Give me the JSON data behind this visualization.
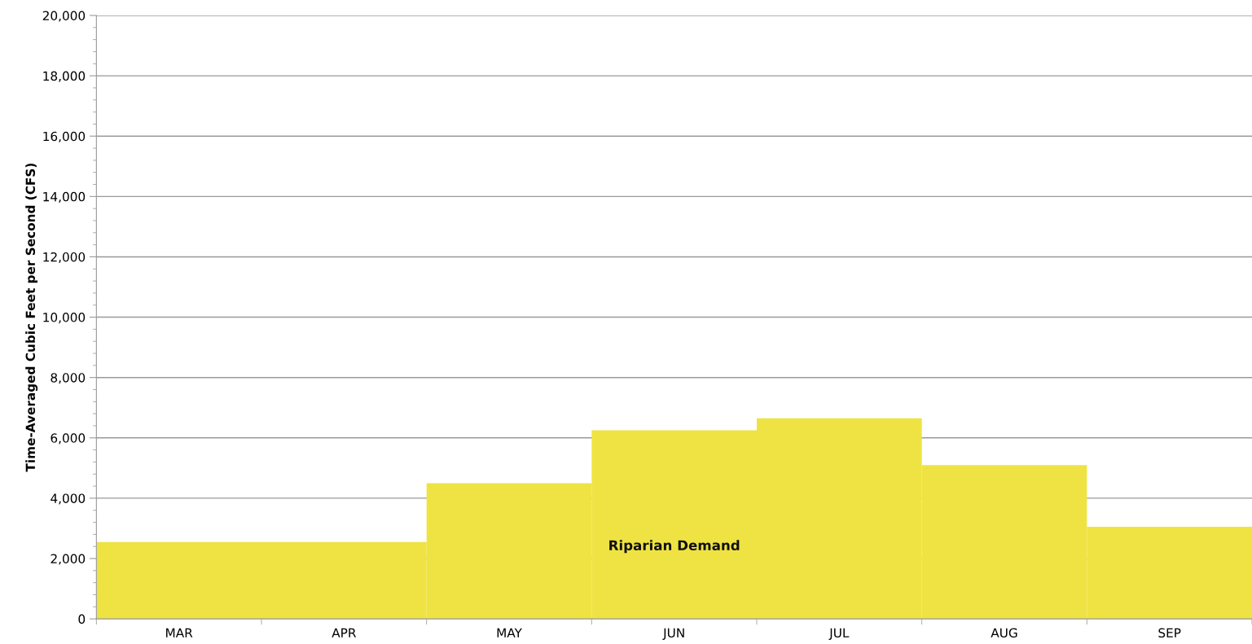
{
  "chart_data": {
    "type": "bar",
    "ylabel": "Time-Averaged Cubic Feet per Second (CFS)",
    "categories": [
      "MAR",
      "APR",
      "MAY",
      "JUN",
      "JUL",
      "AUG",
      "SEP"
    ],
    "series": [
      {
        "name": "Riparian Demand",
        "color": "#efe343",
        "values": [
          2550,
          2550,
          4500,
          6250,
          6650,
          5100,
          3050
        ]
      }
    ],
    "ylim": [
      0,
      20000
    ],
    "yticks": [
      {
        "value": 0,
        "label": "0"
      },
      {
        "value": 2000,
        "label": "2,000"
      },
      {
        "value": 4000,
        "label": "4,000"
      },
      {
        "value": 6000,
        "label": "6,000"
      },
      {
        "value": 8000,
        "label": "8,000"
      },
      {
        "value": 10000,
        "label": "10,000"
      },
      {
        "value": 12000,
        "label": "12,000"
      },
      {
        "value": 14000,
        "label": "14,000"
      },
      {
        "value": 16000,
        "label": "16,000"
      },
      {
        "value": 18000,
        "label": "18,000"
      },
      {
        "value": 20000,
        "label": "20,000"
      }
    ],
    "grid": "y",
    "legend": false
  }
}
